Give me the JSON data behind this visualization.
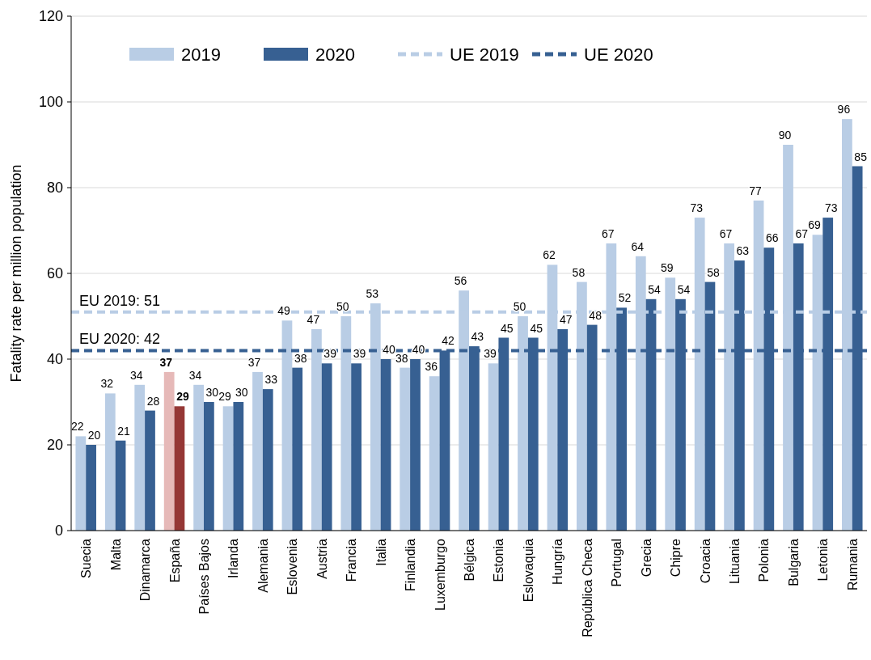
{
  "chart_data": {
    "type": "bar",
    "ylabel": "Fatality rate per million population",
    "categories": [
      "Suecia",
      "Malta",
      "Dinamarca",
      "España",
      "Países Bajos",
      "Irlanda",
      "Alemania",
      "Eslovenia",
      "Austria",
      "Francia",
      "Italia",
      "Finlandia",
      "Luxemburgo",
      "Bélgica",
      "Estonia",
      "Eslovaquia",
      "Hungría",
      "República Checa",
      "Portugal",
      "Grecia",
      "Chipre",
      "Croacia",
      "Lituania",
      "Polonia",
      "Bulgaria",
      "Letonia",
      "Rumania"
    ],
    "series": [
      {
        "name": "2019",
        "color": "#b9cde5",
        "colors": [
          "#b9cde5",
          "#b9cde5",
          "#b9cde5",
          "#e6b9b8",
          "#b9cde5",
          "#b9cde5",
          "#b9cde5",
          "#b9cde5",
          "#b9cde5",
          "#b9cde5",
          "#b9cde5",
          "#b9cde5",
          "#b9cde5",
          "#b9cde5",
          "#b9cde5",
          "#b9cde5",
          "#b9cde5",
          "#b9cde5",
          "#b9cde5",
          "#b9cde5",
          "#b9cde5",
          "#b9cde5",
          "#b9cde5",
          "#b9cde5",
          "#b9cde5",
          "#b9cde5",
          "#b9cde5"
        ],
        "values": [
          22,
          32,
          34,
          37,
          34,
          29,
          37,
          49,
          47,
          50,
          53,
          38,
          36,
          56,
          39,
          50,
          62,
          58,
          67,
          64,
          59,
          73,
          67,
          77,
          90,
          69,
          96
        ]
      },
      {
        "name": "2020",
        "color": "#376092",
        "colors": [
          "#376092",
          "#376092",
          "#376092",
          "#953735",
          "#376092",
          "#376092",
          "#376092",
          "#376092",
          "#376092",
          "#376092",
          "#376092",
          "#376092",
          "#376092",
          "#376092",
          "#376092",
          "#376092",
          "#376092",
          "#376092",
          "#376092",
          "#376092",
          "#376092",
          "#376092",
          "#376092",
          "#376092",
          "#376092",
          "#376092",
          "#376092"
        ],
        "values": [
          20,
          21,
          28,
          29,
          30,
          30,
          33,
          38,
          39,
          39,
          40,
          40,
          42,
          43,
          45,
          45,
          47,
          48,
          52,
          54,
          54,
          58,
          63,
          66,
          67,
          73,
          85
        ]
      }
    ],
    "ref_lines": [
      {
        "axis": "y",
        "value": 51,
        "label": "UE 2019",
        "color": "#b9cde5",
        "line_style": "dashed"
      },
      {
        "axis": "y",
        "value": 42,
        "label": "UE 2020",
        "color": "#376092",
        "line_style": "dashed"
      }
    ],
    "annotations": [
      {
        "text": "EU 2019: 51",
        "y": 51
      },
      {
        "text": "EU 2020: 42",
        "y": 42
      }
    ],
    "ylim": [
      0,
      120
    ],
    "yticks": [
      0,
      20,
      40,
      60,
      80,
      100,
      120
    ],
    "grid": "y",
    "legend": "top",
    "data_labels": true
  }
}
